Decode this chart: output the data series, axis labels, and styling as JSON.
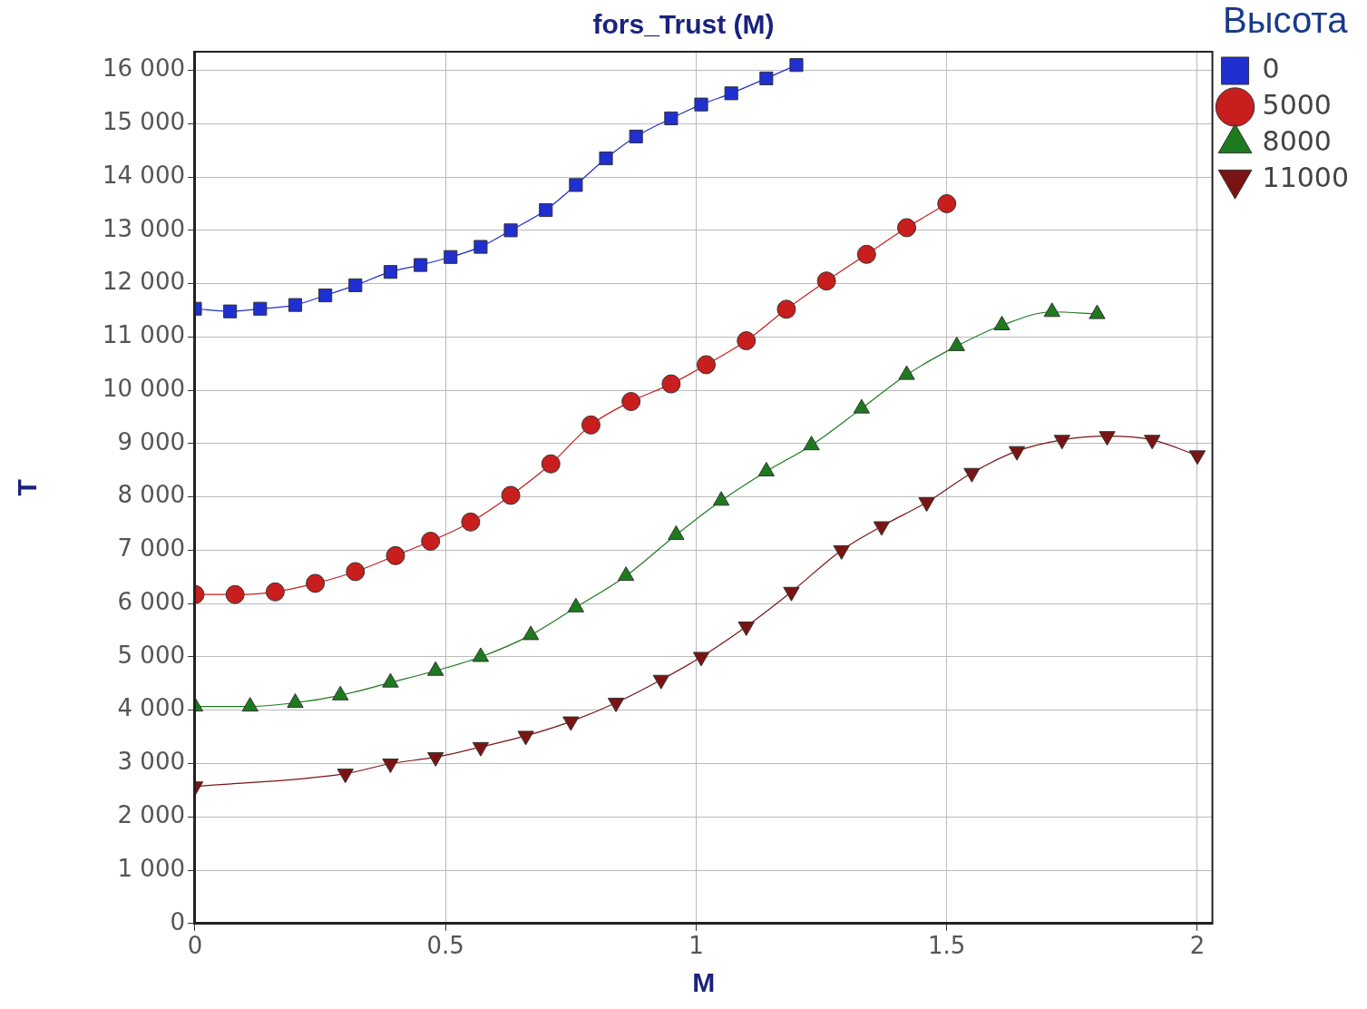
{
  "chart_data": {
    "type": "line",
    "title": "fors_Trust (M)",
    "xlabel": "M",
    "ylabel": "T",
    "legend_title": "Высота",
    "xlim": [
      0,
      2.03
    ],
    "xticks": [
      0,
      0.5,
      1,
      1.5,
      2
    ],
    "ylim": [
      0,
      16350
    ],
    "yticks": [
      {
        "value": 0,
        "label": "0"
      },
      {
        "value": 1000,
        "label": "1 000"
      },
      {
        "value": 2000,
        "label": "2 000"
      },
      {
        "value": 3000,
        "label": "3 000"
      },
      {
        "value": 4000,
        "label": "4 000"
      },
      {
        "value": 5000,
        "label": "5 000"
      },
      {
        "value": 6000,
        "label": "6 000"
      },
      {
        "value": 7000,
        "label": "7 000"
      },
      {
        "value": 8000,
        "label": "8 000"
      },
      {
        "value": 9000,
        "label": "9 000"
      },
      {
        "value": 10000,
        "label": "10 000"
      },
      {
        "value": 11000,
        "label": "11 000"
      },
      {
        "value": 12000,
        "label": "12 000"
      },
      {
        "value": 13000,
        "label": "13 000"
      },
      {
        "value": 14000,
        "label": "14 000"
      },
      {
        "value": 15000,
        "label": "15 000"
      },
      {
        "value": 16000,
        "label": "16 000"
      }
    ],
    "grid": true,
    "legend": "top right",
    "line_style": "solid",
    "series": [
      {
        "name": "0",
        "color": "#1f2fd0",
        "marker": "square",
        "x": [
          0,
          0.07,
          0.13,
          0.2,
          0.26,
          0.32,
          0.39,
          0.45,
          0.51,
          0.57,
          0.63,
          0.7,
          0.76,
          0.82,
          0.88,
          0.95,
          1.01,
          1.07,
          1.14,
          1.2
        ],
        "values": [
          11530,
          11480,
          11530,
          11600,
          11780,
          11970,
          12220,
          12350,
          12500,
          12690,
          13000,
          13380,
          13850,
          14350,
          14760,
          15100,
          15360,
          15570,
          15850,
          16100
        ]
      },
      {
        "name": "5000",
        "color": "#c81e1e",
        "marker": "circle",
        "x": [
          0,
          0.08,
          0.16,
          0.24,
          0.32,
          0.4,
          0.47,
          0.55,
          0.63,
          0.71,
          0.79,
          0.87,
          0.95,
          1.02,
          1.1,
          1.18,
          1.26,
          1.34,
          1.42,
          1.5
        ],
        "values": [
          6170,
          6170,
          6220,
          6380,
          6600,
          6900,
          7170,
          7530,
          8030,
          8620,
          9350,
          9790,
          10120,
          10480,
          10930,
          11520,
          12050,
          12550,
          13050,
          13500
        ]
      },
      {
        "name": "8000",
        "color": "#1e7a1e",
        "marker": "triangle",
        "x": [
          0,
          0.11,
          0.2,
          0.29,
          0.39,
          0.48,
          0.57,
          0.67,
          0.76,
          0.86,
          0.96,
          1.05,
          1.14,
          1.23,
          1.33,
          1.42,
          1.52,
          1.61,
          1.71,
          1.8
        ],
        "values": [
          4070,
          4070,
          4140,
          4280,
          4520,
          4740,
          5000,
          5410,
          5930,
          6520,
          7290,
          7930,
          8480,
          8970,
          9660,
          10290,
          10830,
          11220,
          11470,
          11430
        ]
      },
      {
        "name": "11000",
        "color": "#7a1414",
        "marker": "triangle-down",
        "x": [
          0,
          0.3,
          0.39,
          0.48,
          0.57,
          0.66,
          0.75,
          0.84,
          0.93,
          1.01,
          1.1,
          1.19,
          1.29,
          1.37,
          1.46,
          1.55,
          1.64,
          1.73,
          1.82,
          1.91,
          2.0
        ],
        "values": [
          2570,
          2810,
          3000,
          3120,
          3310,
          3520,
          3790,
          4140,
          4570,
          5000,
          5570,
          6220,
          7000,
          7450,
          7900,
          8450,
          8860,
          9070,
          9140,
          9070,
          8780
        ]
      }
    ]
  }
}
